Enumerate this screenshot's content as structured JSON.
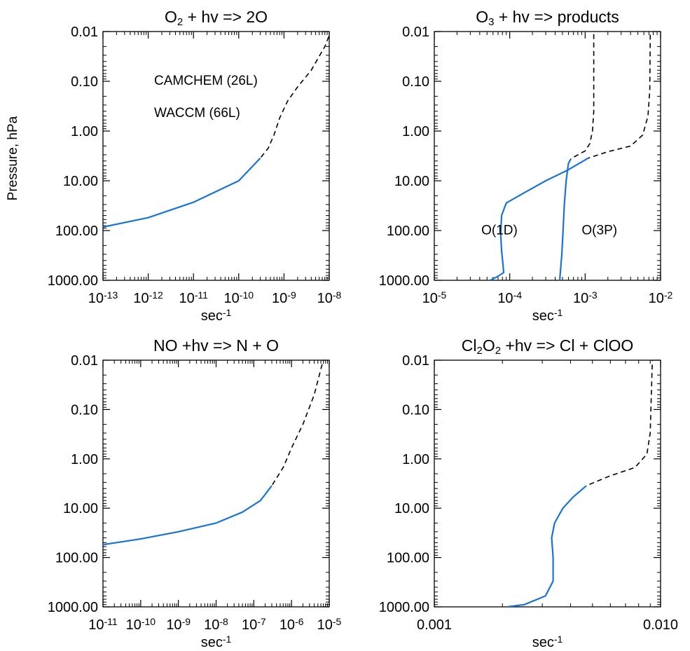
{
  "figure": {
    "y_axis_label": "Pressure, hPa"
  },
  "colors": {
    "camchem": "#1a74d6",
    "waccm": "#000000"
  },
  "legend": [
    {
      "label": "CAMCHEM (26L)",
      "color": "#1a74d6"
    },
    {
      "label": "WACCM (66L)",
      "color": "#000000"
    }
  ],
  "chart_data": [
    {
      "type": "line",
      "title": "O₂ + hv => 2O",
      "xlabel": "sec⁻¹",
      "ylabel": "Pressure, hPa",
      "xscale": "log",
      "yscale": "log",
      "xlim": [
        1e-13,
        1e-08
      ],
      "ylim": [
        1000,
        0.01
      ],
      "y_reversed": true,
      "x_ticks": [
        {
          "v": 1e-13,
          "base": "10",
          "exp": "-13"
        },
        {
          "v": 1e-12,
          "base": "10",
          "exp": "-12"
        },
        {
          "v": 1e-11,
          "base": "10",
          "exp": "-11"
        },
        {
          "v": 1e-10,
          "base": "10",
          "exp": "-10"
        },
        {
          "v": 1e-09,
          "base": "10",
          "exp": "-9"
        },
        {
          "v": 1e-08,
          "base": "10",
          "exp": "-8"
        }
      ],
      "y_ticks": [
        {
          "v": 0.01,
          "label": "0.01"
        },
        {
          "v": 0.1,
          "label": "0.10"
        },
        {
          "v": 1,
          "label": "1.00"
        },
        {
          "v": 10,
          "label": "10.00"
        },
        {
          "v": 100,
          "label": "100.00"
        },
        {
          "v": 1000,
          "label": "1000.00"
        }
      ],
      "annotations": [],
      "series": [
        {
          "name": "WACCM (66L)",
          "color": "#000000",
          "dash": true,
          "points": [
            [
              1e-13,
              85
            ],
            [
              1e-12,
              55
            ],
            [
              1e-11,
              27
            ],
            [
              1e-10,
              10
            ],
            [
              3e-10,
              3.5
            ],
            [
              4.5e-10,
              2.2
            ],
            [
              6e-10,
              1.2
            ],
            [
              8e-10,
              0.55
            ],
            [
              1.2e-09,
              0.25
            ],
            [
              2e-09,
              0.13
            ],
            [
              4e-09,
              0.06
            ],
            [
              8e-09,
              0.02
            ],
            [
              1e-08,
              0.012
            ]
          ]
        },
        {
          "name": "CAMCHEM (26L)",
          "color": "#1a74d6",
          "dash": false,
          "points": [
            [
              1e-13,
              85
            ],
            [
              1e-12,
              55
            ],
            [
              1e-11,
              27
            ],
            [
              1e-10,
              10
            ],
            [
              3e-10,
              3.5
            ]
          ]
        }
      ]
    },
    {
      "type": "line",
      "title": "O₃ + hv => products",
      "xlabel": "sec⁻¹",
      "ylabel": "Pressure, hPa",
      "xscale": "log",
      "yscale": "log",
      "xlim": [
        1e-05,
        0.01
      ],
      "ylim": [
        1000,
        0.01
      ],
      "y_reversed": true,
      "x_ticks": [
        {
          "v": 1e-05,
          "base": "10",
          "exp": "-5"
        },
        {
          "v": 0.0001,
          "base": "10",
          "exp": "-4"
        },
        {
          "v": 0.001,
          "base": "10",
          "exp": "-3"
        },
        {
          "v": 0.01,
          "base": "10",
          "exp": "-2"
        }
      ],
      "y_ticks": [
        {
          "v": 0.01,
          "label": "0.01"
        },
        {
          "v": 0.1,
          "label": "0.10"
        },
        {
          "v": 1,
          "label": "1.00"
        },
        {
          "v": 10,
          "label": "10.00"
        },
        {
          "v": 100,
          "label": "100.00"
        },
        {
          "v": 1000,
          "label": "1000.00"
        }
      ],
      "annotations": [
        {
          "text": "O(1D)",
          "x": 4.2e-05,
          "y": 120
        },
        {
          "text": "O(3P)",
          "x": 0.0009,
          "y": 120
        }
      ],
      "series": [
        {
          "name": "O(1D) WACCM",
          "color": "#000000",
          "dash": true,
          "points": [
            [
              5.5e-05,
              1000
            ],
            [
              6.8e-05,
              850
            ],
            [
              8.3e-05,
              700
            ],
            [
              8.1e-05,
              450
            ],
            [
              7.8e-05,
              250
            ],
            [
              7.6e-05,
              120
            ],
            [
              7.8e-05,
              50
            ],
            [
              9e-05,
              28
            ],
            [
              0.00015,
              18
            ],
            [
              0.0003,
              10
            ],
            [
              0.0006,
              6
            ],
            [
              0.0011,
              3.5
            ],
            [
              0.002,
              2.6
            ],
            [
              0.004,
              2.0
            ],
            [
              0.0058,
              1.2
            ],
            [
              0.0068,
              0.5
            ],
            [
              0.0072,
              0.15
            ],
            [
              0.0073,
              0.01
            ]
          ]
        },
        {
          "name": "O(1D) CAMCHEM",
          "color": "#1a74d6",
          "dash": false,
          "points": [
            [
              5.5e-05,
              1000
            ],
            [
              6.8e-05,
              850
            ],
            [
              8.3e-05,
              700
            ],
            [
              8.1e-05,
              450
            ],
            [
              7.8e-05,
              250
            ],
            [
              7.6e-05,
              120
            ],
            [
              7.8e-05,
              50
            ],
            [
              9e-05,
              28
            ],
            [
              0.00015,
              18
            ],
            [
              0.0003,
              10
            ],
            [
              0.0006,
              6
            ],
            [
              0.0011,
              3.5
            ]
          ]
        },
        {
          "name": "O(3P) WACCM",
          "color": "#000000",
          "dash": true,
          "points": [
            [
              0.00046,
              1000
            ],
            [
              0.00049,
              300
            ],
            [
              0.00051,
              100
            ],
            [
              0.00053,
              30
            ],
            [
              0.00056,
              10
            ],
            [
              0.0006,
              4.5
            ],
            [
              0.00065,
              3.6
            ],
            [
              0.0008,
              3.0
            ],
            [
              0.001,
              2.5
            ],
            [
              0.00115,
              1.8
            ],
            [
              0.00125,
              1.0
            ],
            [
              0.0013,
              0.4
            ],
            [
              0.0013,
              0.1
            ],
            [
              0.0013,
              0.01
            ]
          ]
        },
        {
          "name": "O(3P) CAMCHEM",
          "color": "#1a74d6",
          "dash": false,
          "points": [
            [
              0.00046,
              1000
            ],
            [
              0.00049,
              300
            ],
            [
              0.00051,
              100
            ],
            [
              0.00053,
              30
            ],
            [
              0.00056,
              10
            ],
            [
              0.0006,
              4.5
            ],
            [
              0.00065,
              3.6
            ]
          ]
        }
      ]
    },
    {
      "type": "line",
      "title": "NO +hv => N + O",
      "xlabel": "sec⁻¹",
      "ylabel": "Pressure, hPa",
      "xscale": "log",
      "yscale": "log",
      "xlim": [
        1e-11,
        1e-05
      ],
      "ylim": [
        1000,
        0.01
      ],
      "y_reversed": true,
      "x_ticks": [
        {
          "v": 1e-11,
          "base": "10",
          "exp": "-11"
        },
        {
          "v": 1e-10,
          "base": "10",
          "exp": "-10"
        },
        {
          "v": 1e-09,
          "base": "10",
          "exp": "-9"
        },
        {
          "v": 1e-08,
          "base": "10",
          "exp": "-8"
        },
        {
          "v": 1e-07,
          "base": "10",
          "exp": "-7"
        },
        {
          "v": 1e-06,
          "base": "10",
          "exp": "-6"
        },
        {
          "v": 1e-05,
          "base": "10",
          "exp": "-5"
        }
      ],
      "y_ticks": [
        {
          "v": 0.01,
          "label": "0.01"
        },
        {
          "v": 0.1,
          "label": "0.10"
        },
        {
          "v": 1,
          "label": "1.00"
        },
        {
          "v": 10,
          "label": "10.00"
        },
        {
          "v": 100,
          "label": "100.00"
        },
        {
          "v": 1000,
          "label": "1000.00"
        }
      ],
      "annotations": [],
      "series": [
        {
          "name": "WACCM (66L)",
          "color": "#000000",
          "dash": true,
          "points": [
            [
              1e-11,
              55
            ],
            [
              1e-10,
              42
            ],
            [
              1e-09,
              30
            ],
            [
              1e-08,
              20
            ],
            [
              5e-08,
              12
            ],
            [
              1.5e-07,
              7
            ],
            [
              3e-07,
              3.5
            ],
            [
              6e-07,
              1.5
            ],
            [
              1e-06,
              0.6
            ],
            [
              2e-06,
              0.2
            ],
            [
              4e-06,
              0.05
            ],
            [
              6e-06,
              0.015
            ],
            [
              7e-06,
              0.01
            ]
          ]
        },
        {
          "name": "CAMCHEM (26L)",
          "color": "#1a74d6",
          "dash": false,
          "points": [
            [
              1e-11,
              55
            ],
            [
              1e-10,
              42
            ],
            [
              1e-09,
              30
            ],
            [
              1e-08,
              20
            ],
            [
              5e-08,
              12
            ],
            [
              1.5e-07,
              7
            ],
            [
              3e-07,
              3.5
            ]
          ]
        }
      ]
    },
    {
      "type": "line",
      "title": "Cl₂O₂ +hv => Cl + ClOO",
      "xlabel": "sec⁻¹",
      "ylabel": "Pressure, hPa",
      "xscale": "log",
      "yscale": "log",
      "xlim": [
        0.001,
        0.01
      ],
      "ylim": [
        1000,
        0.01
      ],
      "y_reversed": true,
      "x_ticks": [
        {
          "v": 0.001,
          "label": "0.001"
        },
        {
          "v": 0.01,
          "label": "0.010"
        }
      ],
      "y_ticks": [
        {
          "v": 0.01,
          "label": "0.01"
        },
        {
          "v": 0.1,
          "label": "0.10"
        },
        {
          "v": 1,
          "label": "1.00"
        },
        {
          "v": 10,
          "label": "10.00"
        },
        {
          "v": 100,
          "label": "100.00"
        },
        {
          "v": 1000,
          "label": "1000.00"
        }
      ],
      "annotations": [],
      "series": [
        {
          "name": "WACCM (66L)",
          "color": "#000000",
          "dash": true,
          "points": [
            [
              0.0021,
              1000
            ],
            [
              0.0025,
              900
            ],
            [
              0.0031,
              600
            ],
            [
              0.00335,
              300
            ],
            [
              0.00335,
              100
            ],
            [
              0.0033,
              40
            ],
            [
              0.0034,
              20
            ],
            [
              0.0037,
              10
            ],
            [
              0.0041,
              6
            ],
            [
              0.0047,
              3.5
            ],
            [
              0.006,
              2.2
            ],
            [
              0.0077,
              1.5
            ],
            [
              0.0087,
              0.8
            ],
            [
              0.009,
              0.3
            ],
            [
              0.0091,
              0.05
            ],
            [
              0.0092,
              0.01
            ]
          ]
        },
        {
          "name": "CAMCHEM (26L)",
          "color": "#1a74d6",
          "dash": false,
          "points": [
            [
              0.0021,
              1000
            ],
            [
              0.0025,
              900
            ],
            [
              0.0031,
              600
            ],
            [
              0.00335,
              300
            ],
            [
              0.00335,
              100
            ],
            [
              0.0033,
              40
            ],
            [
              0.0034,
              20
            ],
            [
              0.0037,
              10
            ],
            [
              0.0041,
              6
            ],
            [
              0.0047,
              3.5
            ]
          ]
        }
      ]
    }
  ]
}
